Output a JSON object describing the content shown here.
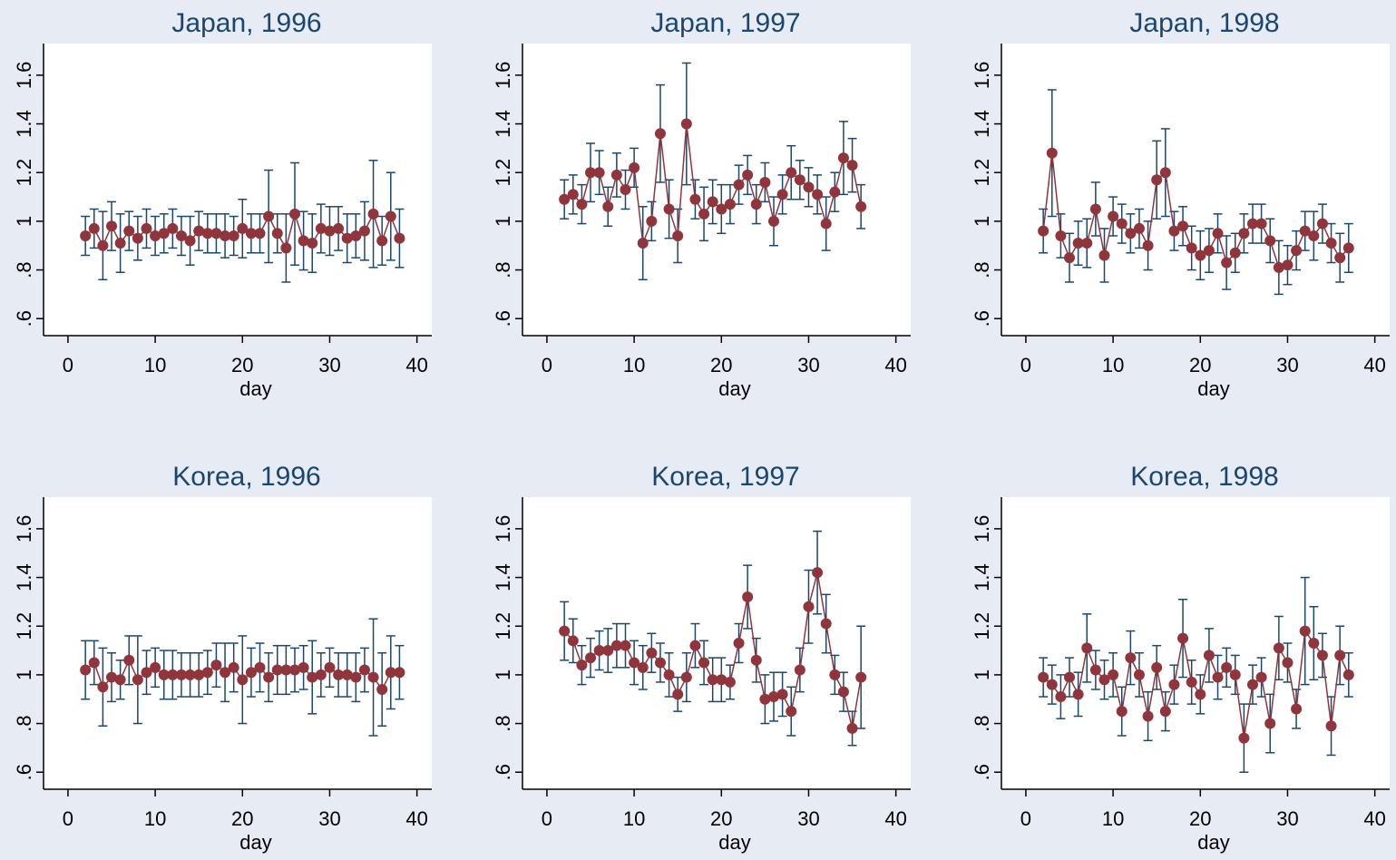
{
  "chart_data": [
    {
      "type": "errorbar-line",
      "title": "Japan, 1996",
      "xlabel": "day",
      "line_color": "#90353b",
      "error_color": "#1a476f",
      "x": [
        2,
        3,
        4,
        5,
        6,
        7,
        8,
        9,
        10,
        11,
        12,
        13,
        14,
        15,
        16,
        17,
        18,
        19,
        20,
        21,
        22,
        23,
        24,
        25,
        26,
        27,
        28,
        29,
        30,
        31,
        32,
        33,
        34,
        35,
        36,
        37,
        38
      ],
      "values": [
        0.94,
        0.97,
        0.9,
        0.98,
        0.91,
        0.96,
        0.93,
        0.97,
        0.94,
        0.95,
        0.97,
        0.94,
        0.92,
        0.96,
        0.95,
        0.95,
        0.94,
        0.94,
        0.97,
        0.95,
        0.95,
        1.02,
        0.95,
        0.89,
        1.03,
        0.92,
        0.91,
        0.97,
        0.96,
        0.97,
        0.93,
        0.94,
        0.96,
        1.03,
        0.92,
        1.02,
        0.93
      ],
      "errors": [
        0.08,
        0.08,
        0.14,
        0.1,
        0.12,
        0.08,
        0.09,
        0.08,
        0.08,
        0.08,
        0.08,
        0.08,
        0.1,
        0.08,
        0.08,
        0.08,
        0.09,
        0.08,
        0.12,
        0.08,
        0.08,
        0.19,
        0.08,
        0.14,
        0.21,
        0.12,
        0.12,
        0.1,
        0.1,
        0.09,
        0.1,
        0.09,
        0.12,
        0.22,
        0.1,
        0.18,
        0.12
      ],
      "xlim": [
        -2.8,
        41.7
      ],
      "ylim": [
        0.53,
        1.73
      ],
      "xticks": [
        0,
        10,
        20,
        30,
        40
      ],
      "yticks": [
        {
          "value": 0.6,
          "label": ".6"
        },
        {
          "value": 0.8,
          "label": ".8"
        },
        1,
        {
          "value": 1.2,
          "label": "1.2"
        },
        {
          "value": 1.4,
          "label": "1.4"
        },
        {
          "value": 1.6,
          "label": "1.6"
        }
      ]
    },
    {
      "type": "errorbar-line",
      "title": "Japan, 1997",
      "xlabel": "day",
      "line_color": "#90353b",
      "error_color": "#1a476f",
      "x": [
        2,
        3,
        4,
        5,
        6,
        7,
        8,
        9,
        10,
        11,
        12,
        13,
        14,
        15,
        16,
        17,
        18,
        19,
        20,
        21,
        22,
        23,
        24,
        25,
        26,
        27,
        28,
        29,
        30,
        31,
        32,
        33,
        34,
        35,
        36
      ],
      "values": [
        1.09,
        1.11,
        1.07,
        1.2,
        1.2,
        1.06,
        1.19,
        1.13,
        1.22,
        0.91,
        1.0,
        1.36,
        1.05,
        0.94,
        1.4,
        1.09,
        1.03,
        1.08,
        1.05,
        1.07,
        1.15,
        1.19,
        1.07,
        1.16,
        1.0,
        1.11,
        1.2,
        1.17,
        1.14,
        1.11,
        0.99,
        1.12,
        1.26,
        1.23,
        1.06
      ],
      "errors": [
        0.08,
        0.08,
        0.08,
        0.12,
        0.09,
        0.08,
        0.09,
        0.08,
        0.08,
        0.15,
        0.08,
        0.2,
        0.12,
        0.11,
        0.25,
        0.08,
        0.11,
        0.09,
        0.1,
        0.08,
        0.08,
        0.08,
        0.08,
        0.08,
        0.1,
        0.08,
        0.11,
        0.08,
        0.08,
        0.08,
        0.11,
        0.08,
        0.15,
        0.11,
        0.09
      ],
      "xlim": [
        -2.8,
        41.7
      ],
      "ylim": [
        0.53,
        1.73
      ],
      "xticks": [
        0,
        10,
        20,
        30,
        40
      ],
      "yticks": [
        {
          "value": 0.6,
          "label": ".6"
        },
        {
          "value": 0.8,
          "label": ".8"
        },
        1,
        {
          "value": 1.2,
          "label": "1.2"
        },
        {
          "value": 1.4,
          "label": "1.4"
        },
        {
          "value": 1.6,
          "label": "1.6"
        }
      ]
    },
    {
      "type": "errorbar-line",
      "title": "Japan, 1998",
      "xlabel": "day",
      "line_color": "#90353b",
      "error_color": "#1a476f",
      "x": [
        2,
        3,
        4,
        5,
        6,
        7,
        8,
        9,
        10,
        11,
        12,
        13,
        14,
        15,
        16,
        17,
        18,
        19,
        20,
        21,
        22,
        23,
        24,
        25,
        26,
        27,
        28,
        29,
        30,
        31,
        32,
        33,
        34,
        35,
        36,
        37
      ],
      "values": [
        0.96,
        1.28,
        0.94,
        0.85,
        0.91,
        0.91,
        1.05,
        0.86,
        1.02,
        0.99,
        0.95,
        0.97,
        0.9,
        1.17,
        1.2,
        0.96,
        0.98,
        0.89,
        0.86,
        0.88,
        0.95,
        0.83,
        0.87,
        0.95,
        0.99,
        0.99,
        0.92,
        0.81,
        0.82,
        0.88,
        0.96,
        0.94,
        0.99,
        0.91,
        0.85,
        0.89
      ],
      "errors": [
        0.09,
        0.26,
        0.09,
        0.1,
        0.09,
        0.1,
        0.11,
        0.11,
        0.08,
        0.08,
        0.08,
        0.08,
        0.1,
        0.16,
        0.18,
        0.08,
        0.08,
        0.09,
        0.1,
        0.09,
        0.08,
        0.11,
        0.08,
        0.08,
        0.08,
        0.08,
        0.09,
        0.11,
        0.08,
        0.08,
        0.08,
        0.1,
        0.08,
        0.08,
        0.1,
        0.1
      ],
      "xlim": [
        -2.8,
        41.7
      ],
      "ylim": [
        0.53,
        1.73
      ],
      "xticks": [
        0,
        10,
        20,
        30,
        40
      ],
      "yticks": [
        {
          "value": 0.6,
          "label": ".6"
        },
        {
          "value": 0.8,
          "label": ".8"
        },
        1,
        {
          "value": 1.2,
          "label": "1.2"
        },
        {
          "value": 1.4,
          "label": "1.4"
        },
        {
          "value": 1.6,
          "label": "1.6"
        }
      ]
    },
    {
      "type": "errorbar-line",
      "title": "Korea, 1996",
      "xlabel": "day",
      "line_color": "#90353b",
      "error_color": "#1a476f",
      "x": [
        2,
        3,
        4,
        5,
        6,
        7,
        8,
        9,
        10,
        11,
        12,
        13,
        14,
        15,
        16,
        17,
        18,
        19,
        20,
        21,
        22,
        23,
        24,
        25,
        26,
        27,
        28,
        29,
        30,
        31,
        32,
        33,
        34,
        35,
        36,
        37,
        38
      ],
      "values": [
        1.02,
        1.05,
        0.95,
        0.99,
        0.98,
        1.06,
        0.98,
        1.01,
        1.03,
        1.0,
        1.0,
        1.0,
        1.0,
        1.0,
        1.01,
        1.04,
        1.01,
        1.03,
        0.98,
        1.01,
        1.03,
        0.99,
        1.02,
        1.02,
        1.02,
        1.03,
        0.99,
        1.0,
        1.03,
        1.0,
        1.0,
        0.99,
        1.02,
        0.99,
        0.94,
        1.01,
        1.01
      ],
      "errors": [
        0.12,
        0.09,
        0.16,
        0.1,
        0.08,
        0.1,
        0.18,
        0.09,
        0.08,
        0.1,
        0.1,
        0.09,
        0.09,
        0.09,
        0.09,
        0.09,
        0.12,
        0.1,
        0.18,
        0.1,
        0.1,
        0.1,
        0.1,
        0.1,
        0.09,
        0.09,
        0.15,
        0.09,
        0.08,
        0.09,
        0.09,
        0.1,
        0.09,
        0.24,
        0.15,
        0.15,
        0.11
      ],
      "xlim": [
        -2.8,
        41.7
      ],
      "ylim": [
        0.53,
        1.73
      ],
      "xticks": [
        0,
        10,
        20,
        30,
        40
      ],
      "yticks": [
        {
          "value": 0.6,
          "label": ".6"
        },
        {
          "value": 0.8,
          "label": ".8"
        },
        1,
        {
          "value": 1.2,
          "label": "1.2"
        },
        {
          "value": 1.4,
          "label": "1.4"
        },
        {
          "value": 1.6,
          "label": "1.6"
        }
      ]
    },
    {
      "type": "errorbar-line",
      "title": "Korea, 1997",
      "xlabel": "day",
      "line_color": "#90353b",
      "error_color": "#1a476f",
      "x": [
        2,
        3,
        4,
        5,
        6,
        7,
        8,
        9,
        10,
        11,
        12,
        13,
        14,
        15,
        16,
        17,
        18,
        19,
        20,
        21,
        22,
        23,
        24,
        25,
        26,
        27,
        28,
        29,
        30,
        31,
        32,
        33,
        34,
        35,
        36
      ],
      "values": [
        1.18,
        1.14,
        1.04,
        1.07,
        1.1,
        1.1,
        1.12,
        1.12,
        1.05,
        1.03,
        1.09,
        1.05,
        1.0,
        0.92,
        0.99,
        1.12,
        1.05,
        0.98,
        0.98,
        0.97,
        1.13,
        1.32,
        1.06,
        0.9,
        0.91,
        0.92,
        0.85,
        1.02,
        1.28,
        1.42,
        1.21,
        1.0,
        0.93,
        0.78,
        0.99
      ],
      "errors": [
        0.12,
        0.09,
        0.08,
        0.08,
        0.08,
        0.09,
        0.09,
        0.09,
        0.09,
        0.09,
        0.08,
        0.08,
        0.09,
        0.07,
        0.1,
        0.09,
        0.09,
        0.09,
        0.09,
        0.07,
        0.08,
        0.13,
        0.09,
        0.1,
        0.1,
        0.09,
        0.1,
        0.09,
        0.15,
        0.17,
        0.12,
        0.08,
        0.08,
        0.07,
        0.21
      ],
      "xlim": [
        -2.8,
        41.7
      ],
      "ylim": [
        0.53,
        1.73
      ],
      "xticks": [
        0,
        10,
        20,
        30,
        40
      ],
      "yticks": [
        {
          "value": 0.6,
          "label": ".6"
        },
        {
          "value": 0.8,
          "label": ".8"
        },
        1,
        {
          "value": 1.2,
          "label": "1.2"
        },
        {
          "value": 1.4,
          "label": "1.4"
        },
        {
          "value": 1.6,
          "label": "1.6"
        }
      ]
    },
    {
      "type": "errorbar-line",
      "title": "Korea, 1998",
      "xlabel": "day",
      "line_color": "#90353b",
      "error_color": "#1a476f",
      "x": [
        2,
        3,
        4,
        5,
        6,
        7,
        8,
        9,
        10,
        11,
        12,
        13,
        14,
        15,
        16,
        17,
        18,
        19,
        20,
        21,
        22,
        23,
        24,
        25,
        26,
        27,
        28,
        29,
        30,
        31,
        32,
        33,
        34,
        35,
        36,
        37
      ],
      "values": [
        0.99,
        0.96,
        0.91,
        0.99,
        0.92,
        1.11,
        1.02,
        0.98,
        1.0,
        0.85,
        1.07,
        1.0,
        0.83,
        1.03,
        0.85,
        0.96,
        1.15,
        0.97,
        0.92,
        1.08,
        0.99,
        1.03,
        1.0,
        0.74,
        0.96,
        0.99,
        0.8,
        1.11,
        1.05,
        0.86,
        1.18,
        1.13,
        1.08,
        0.79,
        1.08,
        1.0
      ],
      "errors": [
        0.08,
        0.08,
        0.09,
        0.08,
        0.09,
        0.14,
        0.08,
        0.08,
        0.09,
        0.1,
        0.11,
        0.09,
        0.1,
        0.09,
        0.08,
        0.08,
        0.16,
        0.09,
        0.08,
        0.11,
        0.09,
        0.08,
        0.08,
        0.14,
        0.08,
        0.08,
        0.12,
        0.13,
        0.08,
        0.08,
        0.22,
        0.15,
        0.09,
        0.12,
        0.12,
        0.09
      ],
      "xlim": [
        -2.8,
        41.7
      ],
      "ylim": [
        0.53,
        1.73
      ],
      "xticks": [
        0,
        10,
        20,
        30,
        40
      ],
      "yticks": [
        {
          "value": 0.6,
          "label": ".6"
        },
        {
          "value": 0.8,
          "label": ".8"
        },
        1,
        {
          "value": 1.2,
          "label": "1.2"
        },
        {
          "value": 1.4,
          "label": "1.4"
        },
        {
          "value": 1.6,
          "label": "1.6"
        }
      ]
    }
  ]
}
